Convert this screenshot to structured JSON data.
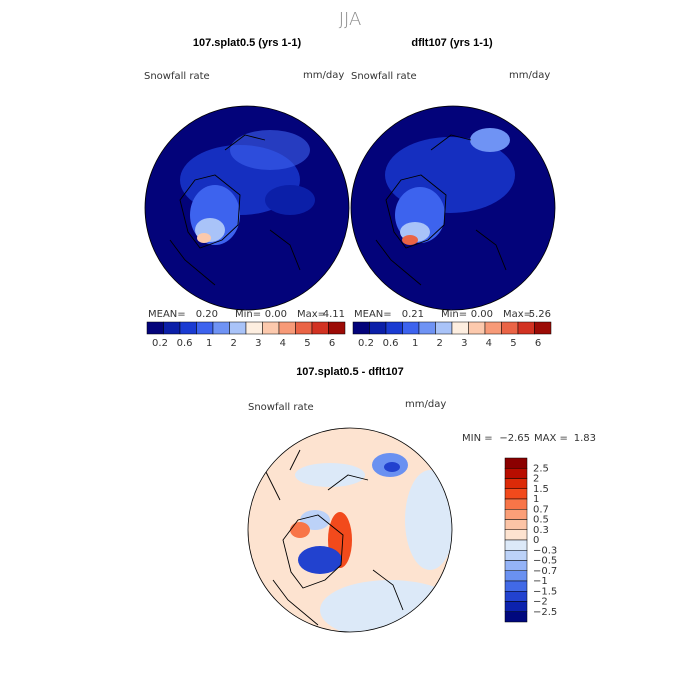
{
  "header": {
    "title": "JJA"
  },
  "panels": [
    {
      "title": "107.splat0.5 (yrs 1-1)",
      "variable": "Snowfall rate",
      "units": "mm/day",
      "stats": {
        "mean_label": "MEAN=",
        "mean": "0.20",
        "min_label": "Min=",
        "min": "0.00",
        "max_label": "Max=",
        "max": "4.11"
      }
    },
    {
      "title": "dflt107 (yrs 1-1)",
      "variable": "Snowfall rate",
      "units": "mm/day",
      "stats": {
        "mean_label": "MEAN=",
        "mean": "0.21",
        "min_label": "Min=",
        "min": "0.00",
        "max_label": "Max=",
        "max": "5.26"
      }
    }
  ],
  "colorbar": {
    "labels": [
      "0.2",
      "0.6",
      "1",
      "2",
      "3",
      "4",
      "5",
      "6"
    ],
    "colors": [
      "#03037a",
      "#0b1fa8",
      "#1a3bd2",
      "#3d63ee",
      "#6f93f4",
      "#a9c3f8",
      "#fdeee0",
      "#fcc9ad",
      "#f79a78",
      "#ea6446",
      "#d23222",
      "#9c0b06"
    ]
  },
  "difference": {
    "title": "107.splat0.5 - dflt107",
    "variable": "Snowfall rate",
    "units": "mm/day",
    "min_label": "MIN =",
    "min": "−2.65",
    "max_label": "MAX =",
    "max": "1.83",
    "colorbar": {
      "labels": [
        "2.5",
        "2",
        "1.5",
        "1",
        "0.7",
        "0.5",
        "0.3",
        "0",
        "−0.3",
        "−0.5",
        "−0.7",
        "−1",
        "−1.5",
        "−2",
        "−2.5"
      ],
      "colors": [
        "#8b0000",
        "#b80d00",
        "#dc2a08",
        "#f24a1c",
        "#f87548",
        "#fb9f78",
        "#fcc4a6",
        "#fde3d0",
        "#dce9f8",
        "#bcd2f8",
        "#94b3f7",
        "#6a91f1",
        "#4169e6",
        "#2242cf",
        "#0c22ad",
        "#00087e"
      ]
    }
  }
}
